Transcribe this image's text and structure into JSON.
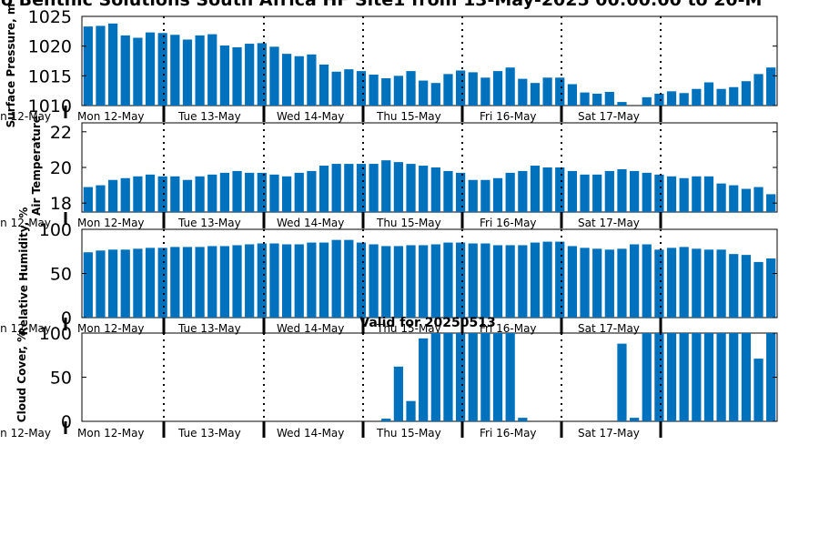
{
  "page": {
    "title": "o Benthic Solutions South Africa HF Site1 from 13-May-2025 00:00:00 to 20-M",
    "valid_label": "Valid for 20250513"
  },
  "colors": {
    "bar": "#0072bd",
    "axis": "#000000",
    "grid": "#000000"
  },
  "day_labels": [
    "Mon 12-May",
    "Tue 13-May",
    "Wed 14-May",
    "Thu 15-May",
    "Fri 16-May",
    "Sat 17-May"
  ],
  "left_cut_label": "n 12-May",
  "chart_data": [
    {
      "type": "bar",
      "ylabel": "Surface Pressure, m",
      "ylim": [
        1010,
        1025
      ],
      "yticks": [
        1010,
        1015,
        1020,
        1025
      ],
      "xtick_labels_visible": false,
      "values": [
        1023.3,
        1023.4,
        1023.8,
        1021.8,
        1021.4,
        1022.3,
        1022.2,
        1021.9,
        1021.1,
        1021.8,
        1022.0,
        1020.1,
        1019.8,
        1020.4,
        1020.5,
        1019.9,
        1018.7,
        1018.3,
        1018.6,
        1016.9,
        1015.7,
        1016.1,
        1015.8,
        1015.2,
        1014.6,
        1015.0,
        1015.8,
        1014.2,
        1013.8,
        1015.3,
        1015.9,
        1015.6,
        1014.7,
        1015.8,
        1016.4,
        1014.5,
        1013.8,
        1014.7,
        1014.7,
        1013.6,
        1012.2,
        1012.0,
        1012.3,
        1010.6,
        1010.0,
        1011.4,
        1012.0,
        1012.4,
        1012.1,
        1012.8,
        1013.9,
        1012.8,
        1013.1,
        1014.1,
        1015.3,
        1016.4
      ]
    },
    {
      "type": "bar",
      "ylabel": "Air Temperature",
      "ylim": [
        17.5,
        22.5
      ],
      "yticks": [
        18,
        20,
        22
      ],
      "xtick_labels_visible": true,
      "values": [
        18.9,
        19.0,
        19.3,
        19.4,
        19.5,
        19.6,
        19.5,
        19.5,
        19.3,
        19.5,
        19.6,
        19.7,
        19.8,
        19.7,
        19.7,
        19.6,
        19.5,
        19.7,
        19.8,
        20.1,
        20.2,
        20.2,
        20.2,
        20.2,
        20.4,
        20.3,
        20.2,
        20.1,
        20.0,
        19.8,
        19.7,
        19.3,
        19.3,
        19.4,
        19.7,
        19.8,
        20.1,
        20.0,
        20.0,
        19.8,
        19.6,
        19.6,
        19.8,
        19.9,
        19.8,
        19.7,
        19.6,
        19.5,
        19.4,
        19.5,
        19.5,
        19.1,
        19.0,
        18.8,
        18.9,
        18.5
      ]
    },
    {
      "type": "bar",
      "ylabel": "Relative Humidity, %",
      "ylim": [
        0,
        100
      ],
      "yticks": [
        0,
        50,
        100
      ],
      "xtick_labels_visible": true,
      "values": [
        74,
        76,
        77,
        77,
        78,
        79,
        79,
        80,
        80,
        80,
        81,
        81,
        82,
        83,
        84,
        84,
        83,
        83,
        85,
        85,
        88,
        88,
        85,
        83,
        81,
        81,
        82,
        82,
        83,
        85,
        85,
        84,
        84,
        82,
        82,
        82,
        85,
        86,
        86,
        81,
        79,
        78,
        77,
        78,
        83,
        83,
        77,
        79,
        80,
        78,
        77,
        77,
        72,
        71,
        63,
        67
      ]
    },
    {
      "type": "bar",
      "ylabel": "Cloud Cover, %",
      "ylim": [
        0,
        100
      ],
      "yticks": [
        0,
        50,
        100
      ],
      "xtick_labels_visible": true,
      "values": [
        0,
        0,
        0,
        0,
        0,
        0,
        0,
        0,
        0,
        0,
        0,
        0,
        0,
        0,
        0,
        0,
        0,
        0,
        0,
        0,
        0,
        0,
        0,
        0,
        3,
        62,
        23,
        94,
        100,
        100,
        100,
        100,
        100,
        100,
        100,
        4,
        0,
        0,
        0,
        0,
        0,
        0,
        0,
        88,
        4,
        100,
        100,
        100,
        100,
        100,
        100,
        100,
        100,
        100,
        71,
        100
      ]
    }
  ]
}
